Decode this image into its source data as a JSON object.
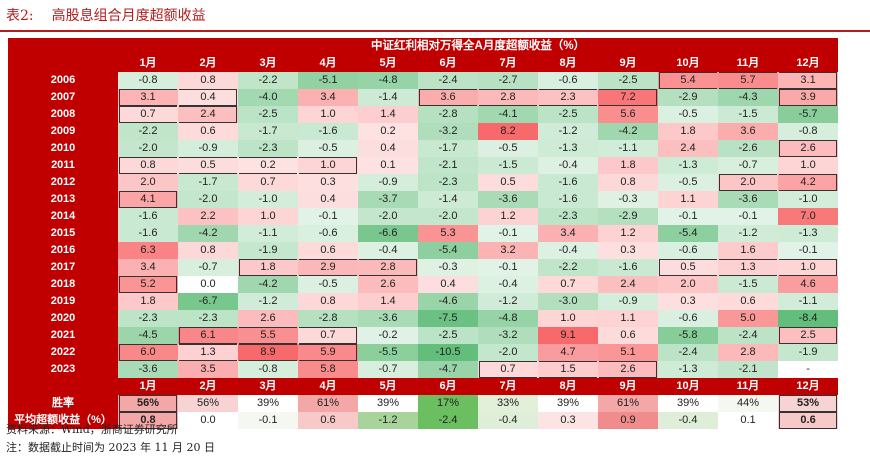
{
  "title": {
    "number": "表2:",
    "text": "高股息组合月度超额收益"
  },
  "table": {
    "caption": "中证红利相对万得全A月度超额收益（%）",
    "months": [
      "1月",
      "2月",
      "3月",
      "4月",
      "5月",
      "6月",
      "7月",
      "8月",
      "9月",
      "10月",
      "11月",
      "12月"
    ],
    "rows": [
      {
        "year": "2006",
        "values": [
          "-0.8",
          "0.8",
          "-2.2",
          "-5.1",
          "-4.8",
          "-2.4",
          "-2.7",
          "-0.6",
          "-2.5",
          "5.4",
          "5.7",
          "3.1"
        ],
        "boxes": [
          [
            9,
            11
          ]
        ]
      },
      {
        "year": "2007",
        "values": [
          "3.1",
          "0.4",
          "-4.0",
          "3.4",
          "-1.4",
          "3.6",
          "2.8",
          "2.3",
          "7.2",
          "-2.9",
          "-4.3",
          "3.9"
        ],
        "boxes": [
          [
            0,
            1
          ],
          [
            5,
            8
          ],
          [
            11,
            11
          ]
        ]
      },
      {
        "year": "2008",
        "values": [
          "0.7",
          "2.4",
          "-2.5",
          "1.0",
          "1.4",
          "-2.8",
          "-4.1",
          "-2.5",
          "5.6",
          "-0.5",
          "-1.5",
          "-5.7"
        ],
        "boxes": [
          [
            0,
            1
          ]
        ]
      },
      {
        "year": "2009",
        "values": [
          "-2.2",
          "0.6",
          "-1.7",
          "-1.6",
          "0.2",
          "-3.2",
          "8.2",
          "-1.2",
          "-4.2",
          "1.8",
          "3.6",
          "-0.8"
        ],
        "boxes": []
      },
      {
        "year": "2010",
        "values": [
          "-2.0",
          "-0.9",
          "-2.3",
          "-0.5",
          "0.4",
          "-1.7",
          "-0.5",
          "-1.3",
          "-1.1",
          "2.4",
          "-2.6",
          "2.6"
        ],
        "boxes": [
          [
            11,
            11
          ]
        ]
      },
      {
        "year": "2011",
        "values": [
          "0.8",
          "0.5",
          "0.2",
          "1.0",
          "0.1",
          "-2.1",
          "-1.5",
          "-0.4",
          "1.8",
          "-1.3",
          "-0.7",
          "1.0"
        ],
        "boxes": [
          [
            0,
            3
          ]
        ]
      },
      {
        "year": "2012",
        "values": [
          "2.0",
          "-1.7",
          "0.7",
          "0.3",
          "-0.9",
          "-2.3",
          "0.5",
          "-1.6",
          "0.8",
          "-0.5",
          "2.0",
          "4.2"
        ],
        "boxes": [
          [
            10,
            11
          ]
        ]
      },
      {
        "year": "2013",
        "values": [
          "4.1",
          "-2.0",
          "-1.0",
          "0.4",
          "-3.7",
          "-1.4",
          "-3.6",
          "-1.6",
          "-0.3",
          "1.1",
          "-3.6",
          "-1.0"
        ],
        "boxes": [
          [
            0,
            0
          ]
        ]
      },
      {
        "year": "2014",
        "values": [
          "-1.6",
          "2.2",
          "1.0",
          "-0.1",
          "-2.0",
          "-2.0",
          "1.2",
          "-2.3",
          "-2.9",
          "-0.1",
          "-0.1",
          "7.0"
        ],
        "boxes": []
      },
      {
        "year": "2015",
        "values": [
          "-1.6",
          "-4.2",
          "-1.1",
          "-0.6",
          "-6.6",
          "5.3",
          "-0.1",
          "3.4",
          "1.2",
          "-5.4",
          "-1.2",
          "-1.3"
        ],
        "boxes": []
      },
      {
        "year": "2016",
        "values": [
          "6.3",
          "0.8",
          "-1.9",
          "0.6",
          "-0.4",
          "-5.4",
          "3.2",
          "-0.4",
          "0.3",
          "-0.6",
          "1.6",
          "-0.1"
        ],
        "boxes": []
      },
      {
        "year": "2017",
        "values": [
          "3.4",
          "-0.7",
          "1.8",
          "2.9",
          "2.8",
          "-0.3",
          "-0.1",
          "-2.2",
          "-1.6",
          "0.5",
          "1.3",
          "1.0"
        ],
        "boxes": [
          [
            2,
            4
          ],
          [
            9,
            11
          ]
        ]
      },
      {
        "year": "2018",
        "values": [
          "5.2",
          "0.0",
          "-4.2",
          "-0.5",
          "2.6",
          "0.4",
          "-0.4",
          "0.7",
          "2.4",
          "2.0",
          "-1.5",
          "4.6"
        ],
        "boxes": [
          [
            0,
            0
          ]
        ]
      },
      {
        "year": "2019",
        "values": [
          "1.8",
          "-6.7",
          "-1.2",
          "0.8",
          "1.4",
          "-4.6",
          "-1.2",
          "-3.0",
          "-0.9",
          "0.3",
          "0.6",
          "-1.1"
        ],
        "boxes": []
      },
      {
        "year": "2020",
        "values": [
          "-2.3",
          "-2.3",
          "2.6",
          "-2.8",
          "-3.6",
          "-7.5",
          "-4.8",
          "1.0",
          "1.1",
          "-0.6",
          "5.0",
          "-8.4"
        ],
        "boxes": []
      },
      {
        "year": "2021",
        "values": [
          "-4.5",
          "6.1",
          "5.5",
          "0.7",
          "-0.2",
          "-2.5",
          "-3.2",
          "9.1",
          "0.6",
          "-5.8",
          "-2.4",
          "2.5"
        ],
        "boxes": [
          [
            1,
            3
          ],
          [
            11,
            11
          ]
        ]
      },
      {
        "year": "2022",
        "values": [
          "6.0",
          "1.3",
          "8.9",
          "5.9",
          "-5.5",
          "-10.5",
          "-2.0",
          "4.7",
          "5.1",
          "-2.4",
          "2.8",
          "-1.9"
        ],
        "boxes": [
          [
            0,
            3
          ]
        ]
      },
      {
        "year": "2023",
        "values": [
          "-3.6",
          "3.5",
          "-0.8",
          "5.8",
          "-0.7",
          "-4.7",
          "0.7",
          "1.5",
          "2.6",
          "-1.3",
          "-2.1",
          "-"
        ],
        "boxes": [
          [
            6,
            8
          ]
        ]
      }
    ],
    "stats": [
      {
        "label": "胜率",
        "values": [
          "56%",
          "56%",
          "39%",
          "61%",
          "39%",
          "17%",
          "33%",
          "39%",
          "61%",
          "39%",
          "44%",
          "53%"
        ],
        "box_cols": [
          0,
          11
        ],
        "bold_cols": [
          0,
          11
        ],
        "shades": [
          "#f4a7a7",
          "#f8d3d3",
          "#ffffff",
          "#f4a7a7",
          "#ffffff",
          "#6cbf60",
          "#e2efd9",
          "#ffffff",
          "#f4a7a7",
          "#ffffff",
          "#f4f8f1",
          "#f8d3d3"
        ]
      },
      {
        "label": "平均超额收益（%）",
        "values": [
          "0.8",
          "0.0",
          "-0.1",
          "0.6",
          "-1.2",
          "-2.4",
          "-0.4",
          "0.3",
          "0.9",
          "-0.4",
          "0.1",
          "0.6"
        ],
        "box_cols": [
          0,
          11
        ],
        "bold_cols": [
          0,
          11
        ],
        "shades": [
          "#f4a7a7",
          "#ffffff",
          "#f4f8f1",
          "#f8c9c9",
          "#a8d49b",
          "#6cbf60",
          "#dfeed8",
          "#fde4e4",
          "#f08c8c",
          "#dfeed8",
          "#ffffff",
          "#f8c9c9"
        ]
      }
    ]
  },
  "footnotes": {
    "source": "资料来源：Wind，浙商证券研究所",
    "note": "注：数据截止时间为 2023 年 11 月 20 日"
  },
  "colors": {
    "accent": "#c00000",
    "positive": "#f8696b",
    "negative": "#63be7b"
  }
}
